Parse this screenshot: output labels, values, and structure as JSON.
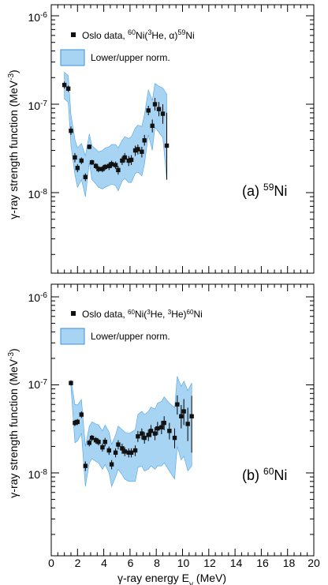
{
  "chart_data": [
    {
      "type": "scatter",
      "panel_label": "(a)",
      "nucleus_mass": "59",
      "nucleus_symbol": "Ni",
      "xlim": [
        0,
        20
      ],
      "ylim": [
        1e-09,
        1.5e-06
      ],
      "y_scale": "log",
      "y_tick_labels": [
        {
          "value": 1e-06,
          "base": "10",
          "exp": "-6"
        },
        {
          "value": 1e-07,
          "base": "10",
          "exp": "-7"
        },
        {
          "value": 1e-08,
          "base": "10",
          "exp": "-8"
        }
      ],
      "ylabel": "γ-ray strength function (MeV",
      "ylabel_exp": "-3",
      "ylabel_close": ")",
      "legend": [
        {
          "kind": "marker",
          "pre": "Oslo data, ",
          "sup1": "60",
          "mid1": "Ni(",
          "sup2": "3",
          "mid2": "He, α)",
          "sup3": "59",
          "post": "Ni"
        },
        {
          "kind": "band",
          "text": "Lower/upper norm."
        }
      ],
      "colors": {
        "band": "#a8d4f4",
        "band_edge": "#4da3e6",
        "marker": "#111111"
      },
      "points": [
        {
          "x": 1.0,
          "y": 1.65e-07,
          "lo": 1.5e-07,
          "hi": 1.8e-07
        },
        {
          "x": 1.3,
          "y": 1.5e-07,
          "lo": 1.38e-07,
          "hi": 1.62e-07
        },
        {
          "x": 1.5,
          "y": 5e-08,
          "lo": 4.5e-08,
          "hi": 5.6e-08
        },
        {
          "x": 1.8,
          "y": 2.5e-08,
          "lo": 2.2e-08,
          "hi": 2.8e-08
        },
        {
          "x": 2.0,
          "y": 1.9e-08,
          "lo": 1.7e-08,
          "hi": 2.1e-08
        },
        {
          "x": 2.3,
          "y": 2.3e-08,
          "lo": 2.1e-08,
          "hi": 2.5e-08
        },
        {
          "x": 2.6,
          "y": 1.5e-08,
          "lo": 1.35e-08,
          "hi": 1.65e-08
        },
        {
          "x": 2.9,
          "y": 3.3e-08,
          "lo": 3.1e-08,
          "hi": 3.5e-08
        },
        {
          "x": 3.1,
          "y": 2.2e-08,
          "lo": 2.05e-08,
          "hi": 2.35e-08
        },
        {
          "x": 3.4,
          "y": 2e-08,
          "lo": 1.85e-08,
          "hi": 2.15e-08
        },
        {
          "x": 3.6,
          "y": 1.85e-08,
          "lo": 1.7e-08,
          "hi": 2e-08
        },
        {
          "x": 3.9,
          "y": 1.85e-08,
          "lo": 1.7e-08,
          "hi": 2e-08
        },
        {
          "x": 4.1,
          "y": 1.95e-08,
          "lo": 1.8e-08,
          "hi": 2.1e-08
        },
        {
          "x": 4.4,
          "y": 2e-08,
          "lo": 1.8e-08,
          "hi": 2.2e-08
        },
        {
          "x": 4.6,
          "y": 2.1e-08,
          "lo": 1.9e-08,
          "hi": 2.3e-08
        },
        {
          "x": 4.9,
          "y": 2.05e-08,
          "lo": 1.85e-08,
          "hi": 2.25e-08
        },
        {
          "x": 5.1,
          "y": 1.8e-08,
          "lo": 1.6e-08,
          "hi": 2e-08
        },
        {
          "x": 5.4,
          "y": 2.3e-08,
          "lo": 2.05e-08,
          "hi": 2.55e-08
        },
        {
          "x": 5.6,
          "y": 2.5e-08,
          "lo": 2.2e-08,
          "hi": 2.8e-08
        },
        {
          "x": 5.9,
          "y": 2.3e-08,
          "lo": 2e-08,
          "hi": 2.6e-08
        },
        {
          "x": 6.1,
          "y": 2.35e-08,
          "lo": 2.05e-08,
          "hi": 2.65e-08
        },
        {
          "x": 6.4,
          "y": 3e-08,
          "lo": 2.6e-08,
          "hi": 3.4e-08
        },
        {
          "x": 6.6,
          "y": 3.1e-08,
          "lo": 2.7e-08,
          "hi": 3.5e-08
        },
        {
          "x": 6.9,
          "y": 2.9e-08,
          "lo": 2.5e-08,
          "hi": 3.3e-08
        },
        {
          "x": 7.1,
          "y": 3.9e-08,
          "lo": 3.4e-08,
          "hi": 4.5e-08
        },
        {
          "x": 7.4,
          "y": 8.5e-08,
          "lo": 7.5e-08,
          "hi": 9.6e-08
        },
        {
          "x": 7.7,
          "y": 5.7e-08,
          "lo": 4.8e-08,
          "hi": 6.7e-08
        },
        {
          "x": 7.9,
          "y": 1e-07,
          "lo": 8.5e-08,
          "hi": 1.18e-07
        },
        {
          "x": 8.2,
          "y": 8.8e-08,
          "lo": 7.3e-08,
          "hi": 1.06e-07
        },
        {
          "x": 8.5,
          "y": 7.8e-08,
          "lo": 6e-08,
          "hi": 1e-07
        },
        {
          "x": 8.8,
          "y": 3.4e-08,
          "lo": 1.4e-08,
          "hi": 8e-08
        }
      ],
      "band": {
        "x": [
          1.0,
          1.3,
          1.5,
          1.8,
          2.0,
          2.3,
          2.6,
          2.9,
          3.1,
          3.4,
          3.6,
          3.9,
          4.1,
          4.4,
          4.6,
          4.9,
          5.1,
          5.4,
          5.6,
          5.9,
          6.1,
          6.4,
          6.6,
          6.9,
          7.1,
          7.4,
          7.7,
          7.9,
          8.2,
          8.5,
          8.8
        ],
        "upper": [
          2.3e-07,
          2.1e-07,
          7.6e-08,
          4e-08,
          3.2e-08,
          3.6e-08,
          2.6e-08,
          4.6e-08,
          3.4e-08,
          3.1e-08,
          2.9e-08,
          3e-08,
          3.2e-08,
          3.3e-08,
          3.5e-08,
          3.5e-08,
          3.2e-08,
          3.9e-08,
          4.3e-08,
          4.1e-08,
          4.3e-08,
          5.4e-08,
          5.8e-08,
          5.6e-08,
          7.6e-08,
          1.45e-07,
          1.1e-07,
          1.72e-07,
          1.6e-07,
          1.52e-07,
          1.3e-07
        ],
        "lower": [
          1.15e-07,
          1.05e-07,
          3.4e-08,
          1.6e-08,
          1.15e-08,
          1.4e-08,
          9e-09,
          2.2e-08,
          1.4e-08,
          1.25e-08,
          1.15e-08,
          1.1e-08,
          1.15e-08,
          1.2e-08,
          1.25e-08,
          1.2e-08,
          1.05e-08,
          1.35e-08,
          1.45e-08,
          1.3e-08,
          1.3e-08,
          1.65e-08,
          1.7e-08,
          1.55e-08,
          2.1e-08,
          4.5e-08,
          3e-08,
          5.5e-08,
          4.8e-08,
          4.2e-08,
          1.4e-08
        ]
      }
    },
    {
      "type": "scatter",
      "panel_label": "(b)",
      "nucleus_mass": "60",
      "nucleus_symbol": "Ni",
      "xlim": [
        0,
        20
      ],
      "ylim": [
        1e-09,
        1.5e-06
      ],
      "y_scale": "log",
      "y_tick_labels": [
        {
          "value": 1e-06,
          "base": "10",
          "exp": "-6"
        },
        {
          "value": 1e-07,
          "base": "10",
          "exp": "-7"
        },
        {
          "value": 1e-08,
          "base": "10",
          "exp": "-8"
        }
      ],
      "ylabel": "γ-ray strength function (MeV",
      "ylabel_exp": "-3",
      "ylabel_close": ")",
      "xlabel": "γ-ray energy E",
      "xlabel_sub": "γ",
      "xlabel_unit": " (MeV)",
      "x_tick_labels": [
        "0",
        "2",
        "4",
        "6",
        "8",
        "10",
        "12",
        "14",
        "16",
        "18",
        "20"
      ],
      "legend": [
        {
          "kind": "marker",
          "pre": "Oslo data, ",
          "sup1": "60",
          "mid1": "Ni(",
          "sup2": "3",
          "mid2": "He, ",
          "sup3": "3",
          "mid3": "He)",
          "sup4": "60",
          "post": "Ni"
        },
        {
          "kind": "band",
          "text": "Lower/upper norm."
        }
      ],
      "colors": {
        "band": "#a8d4f4",
        "band_edge": "#4da3e6",
        "marker": "#111111"
      },
      "points": [
        {
          "x": 1.5,
          "y": 1.05e-07,
          "lo": 9.8e-08,
          "hi": 1.12e-07
        },
        {
          "x": 1.8,
          "y": 3.7e-08,
          "lo": 3.4e-08,
          "hi": 4e-08
        },
        {
          "x": 2.0,
          "y": 3.8e-08,
          "lo": 3.5e-08,
          "hi": 4.1e-08
        },
        {
          "x": 2.3,
          "y": 4.6e-08,
          "lo": 4.2e-08,
          "hi": 5e-08
        },
        {
          "x": 2.6,
          "y": 1.2e-08,
          "lo": 1.05e-08,
          "hi": 1.35e-08
        },
        {
          "x": 2.9,
          "y": 2.2e-08,
          "lo": 2e-08,
          "hi": 2.4e-08
        },
        {
          "x": 3.1,
          "y": 2.5e-08,
          "lo": 2.3e-08,
          "hi": 2.7e-08
        },
        {
          "x": 3.4,
          "y": 2.35e-08,
          "lo": 2.15e-08,
          "hi": 2.55e-08
        },
        {
          "x": 3.6,
          "y": 2.25e-08,
          "lo": 2.05e-08,
          "hi": 2.45e-08
        },
        {
          "x": 3.9,
          "y": 1.95e-08,
          "lo": 1.75e-08,
          "hi": 2.15e-08
        },
        {
          "x": 4.1,
          "y": 2.25e-08,
          "lo": 2e-08,
          "hi": 2.5e-08
        },
        {
          "x": 4.4,
          "y": 1.8e-08,
          "lo": 1.6e-08,
          "hi": 2e-08
        },
        {
          "x": 4.6,
          "y": 1.25e-08,
          "lo": 1.1e-08,
          "hi": 1.4e-08
        },
        {
          "x": 4.9,
          "y": 1.7e-08,
          "lo": 1.5e-08,
          "hi": 1.9e-08
        },
        {
          "x": 5.1,
          "y": 2.1e-08,
          "lo": 1.85e-08,
          "hi": 2.35e-08
        },
        {
          "x": 5.4,
          "y": 1.9e-08,
          "lo": 1.65e-08,
          "hi": 2.15e-08
        },
        {
          "x": 5.6,
          "y": 1.75e-08,
          "lo": 1.55e-08,
          "hi": 1.95e-08
        },
        {
          "x": 5.9,
          "y": 1.7e-08,
          "lo": 1.5e-08,
          "hi": 1.9e-08
        },
        {
          "x": 6.1,
          "y": 1.7e-08,
          "lo": 1.5e-08,
          "hi": 1.9e-08
        },
        {
          "x": 6.4,
          "y": 1.8e-08,
          "lo": 1.55e-08,
          "hi": 2.05e-08
        },
        {
          "x": 6.6,
          "y": 2.6e-08,
          "lo": 2.25e-08,
          "hi": 3e-08
        },
        {
          "x": 6.9,
          "y": 2.8e-08,
          "lo": 2.4e-08,
          "hi": 3.2e-08
        },
        {
          "x": 7.1,
          "y": 2.5e-08,
          "lo": 2.15e-08,
          "hi": 2.9e-08
        },
        {
          "x": 7.4,
          "y": 2.7e-08,
          "lo": 2.3e-08,
          "hi": 3.1e-08
        },
        {
          "x": 7.6,
          "y": 3e-08,
          "lo": 2.55e-08,
          "hi": 3.5e-08
        },
        {
          "x": 7.9,
          "y": 2.8e-08,
          "lo": 2.35e-08,
          "hi": 3.3e-08
        },
        {
          "x": 8.1,
          "y": 3.2e-08,
          "lo": 2.7e-08,
          "hi": 3.8e-08
        },
        {
          "x": 8.4,
          "y": 3.3e-08,
          "lo": 2.75e-08,
          "hi": 3.9e-08
        },
        {
          "x": 8.6,
          "y": 3.7e-08,
          "lo": 3.05e-08,
          "hi": 4.4e-08
        },
        {
          "x": 9.0,
          "y": 3e-08,
          "lo": 2.4e-08,
          "hi": 3.7e-08
        },
        {
          "x": 9.4,
          "y": 2.5e-08,
          "lo": 1.9e-08,
          "hi": 3.2e-08
        },
        {
          "x": 9.6,
          "y": 6e-08,
          "lo": 4.6e-08,
          "hi": 7.6e-08
        },
        {
          "x": 9.9,
          "y": 4.4e-08,
          "lo": 3.2e-08,
          "hi": 5.9e-08
        },
        {
          "x": 10.1,
          "y": 5e-08,
          "lo": 3.5e-08,
          "hi": 6.9e-08
        },
        {
          "x": 10.4,
          "y": 3.6e-08,
          "lo": 2.3e-08,
          "hi": 5.5e-08
        },
        {
          "x": 10.7,
          "y": 4.4e-08,
          "lo": 1.7e-08,
          "hi": 7.5e-08
        }
      ],
      "band": {
        "x": [
          1.5,
          1.8,
          2.0,
          2.3,
          2.6,
          2.9,
          3.1,
          3.4,
          3.6,
          3.9,
          4.1,
          4.4,
          4.6,
          4.9,
          5.1,
          5.4,
          5.6,
          5.9,
          6.1,
          6.4,
          6.6,
          6.9,
          7.1,
          7.4,
          7.6,
          7.9,
          8.1,
          8.4,
          8.6,
          9.0,
          9.4,
          9.6,
          9.9,
          10.1,
          10.4,
          10.7
        ],
        "upper": [
          1.15e-07,
          6e-08,
          5.9e-08,
          6.8e-08,
          2e-08,
          3.4e-08,
          3.8e-08,
          3.6e-08,
          3.5e-08,
          3e-08,
          3.5e-08,
          2.9e-08,
          2.1e-08,
          2.7e-08,
          3.4e-08,
          3.1e-08,
          2.9e-08,
          2.8e-08,
          2.9e-08,
          3.1e-08,
          4.6e-08,
          5e-08,
          4.6e-08,
          5e-08,
          5.6e-08,
          5.3e-08,
          6.2e-08,
          6.5e-08,
          7.3e-08,
          6.2e-08,
          5.5e-08,
          1.25e-07,
          9.6e-08,
          1.1e-07,
          8.6e-08,
          1.05e-07
        ],
        "lower": [
          9.5e-08,
          2.2e-08,
          2.3e-08,
          2.8e-08,
          7e-09,
          1.3e-08,
          1.45e-08,
          1.35e-08,
          1.3e-08,
          1.1e-08,
          1.25e-08,
          1e-08,
          7e-09,
          9e-09,
          1.1e-08,
          9.5e-09,
          8.5e-09,
          8e-09,
          8e-09,
          8e-09,
          1.15e-08,
          1.2e-08,
          1.05e-08,
          1.1e-08,
          1.2e-08,
          1.1e-08,
          1.2e-08,
          1.2e-08,
          1.3e-08,
          1.05e-08,
          8.5e-09,
          2e-08,
          1.4e-08,
          1.55e-08,
          1.05e-08,
          1.2e-08
        ]
      }
    }
  ]
}
